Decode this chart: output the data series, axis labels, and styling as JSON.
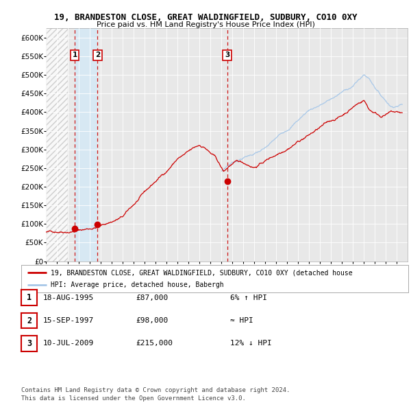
{
  "title1": "19, BRANDESTON CLOSE, GREAT WALDINGFIELD, SUDBURY, CO10 0XY",
  "title2": "Price paid vs. HM Land Registry's House Price Index (HPI)",
  "yticks": [
    0,
    50000,
    100000,
    150000,
    200000,
    250000,
    300000,
    350000,
    400000,
    450000,
    500000,
    550000,
    600000
  ],
  "ytick_labels": [
    "£0",
    "£50K",
    "£100K",
    "£150K",
    "£200K",
    "£250K",
    "£300K",
    "£350K",
    "£400K",
    "£450K",
    "£500K",
    "£550K",
    "£600K"
  ],
  "ylim": [
    0,
    625000
  ],
  "legend_line1": "19, BRANDESTON CLOSE, GREAT WALDINGFIELD, SUDBURY, CO10 0XY (detached house",
  "legend_line2": "HPI: Average price, detached house, Babergh",
  "sale_points": [
    {
      "label": "1",
      "date_str": "18-AUG-1995",
      "price": 87000,
      "x_year": 1995.62
    },
    {
      "label": "2",
      "date_str": "15-SEP-1997",
      "price": 98000,
      "x_year": 1997.7
    },
    {
      "label": "3",
      "date_str": "10-JUL-2009",
      "price": 215000,
      "x_year": 2009.52
    }
  ],
  "table_rows": [
    {
      "num": "1",
      "date": "18-AUG-1995",
      "price": "£87,000",
      "relation": "6% ↑ HPI"
    },
    {
      "num": "2",
      "date": "15-SEP-1997",
      "price": "£98,000",
      "relation": "≈ HPI"
    },
    {
      "num": "3",
      "date": "10-JUL-2009",
      "price": "£215,000",
      "relation": "12% ↓ HPI"
    }
  ],
  "footer": "Contains HM Land Registry data © Crown copyright and database right 2024.\nThis data is licensed under the Open Government Licence v3.0.",
  "hpi_color": "#a8c8e8",
  "price_color": "#cc0000",
  "dashed_color": "#cc0000",
  "background_chart": "#e8e8e8",
  "background_fig": "#ffffff",
  "xmin": 1993,
  "xmax": 2026,
  "hatch_xmax": 1995.0,
  "shade_x1": 1995.62,
  "shade_x2": 1997.7,
  "hpi_start_year": 2009.0
}
